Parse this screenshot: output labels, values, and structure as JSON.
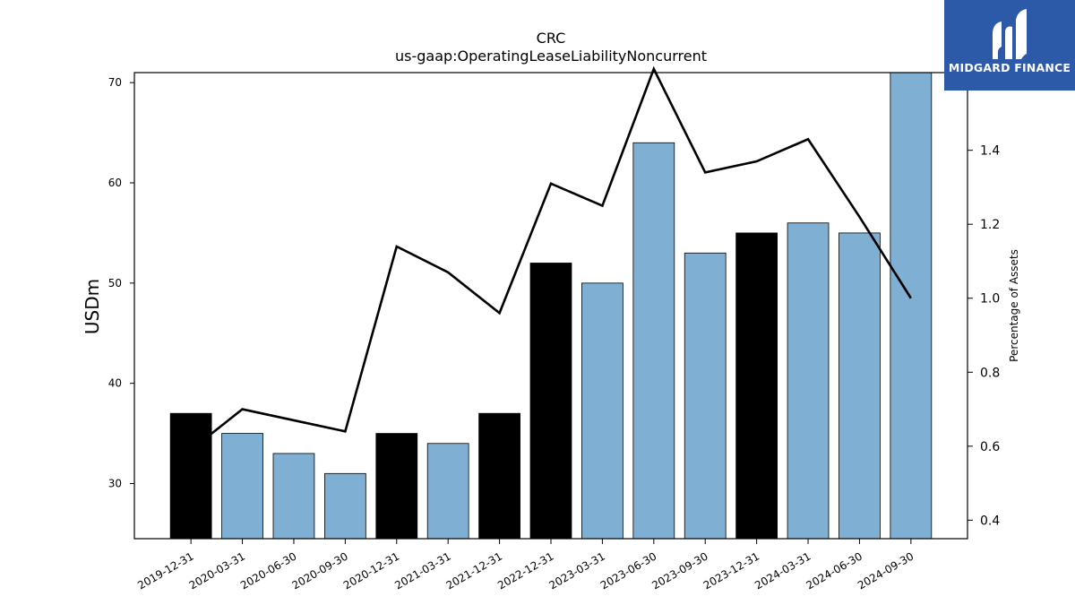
{
  "title": "CRC",
  "subtitle": "us-gaap:OperatingLeaseLiabilityNoncurrent",
  "logo": {
    "text": "MIDGARD FINANCE",
    "color": "#2d5aa8"
  },
  "chart_data": {
    "type": "bar",
    "title": "CRC",
    "subtitle": "us-gaap:OperatingLeaseLiabilityNoncurrent",
    "categories": [
      "2019-12-31",
      "2020-03-31",
      "2020-06-30",
      "2020-09-30",
      "2020-12-31",
      "2021-03-31",
      "2021-12-31",
      "2022-12-31",
      "2023-03-31",
      "2023-06-30",
      "2023-09-30",
      "2023-12-31",
      "2024-03-31",
      "2024-06-30",
      "2024-09-30"
    ],
    "ylabel": "USDm",
    "y2label": "Percentage of Assets",
    "ylim": [
      24.5,
      71
    ],
    "y2lim": [
      0.35,
      1.61
    ],
    "yticks": [
      30,
      40,
      50,
      60,
      70
    ],
    "y2ticks": [
      0.4,
      0.6,
      0.8,
      1.0,
      1.2,
      1.4
    ],
    "series": [
      {
        "kind": "bar",
        "values": [
          37,
          35,
          33,
          31,
          35,
          34,
          37,
          52,
          50,
          64,
          53,
          55,
          56,
          55,
          71
        ],
        "colors": [
          "#000000",
          "#7fafd3",
          "#7fafd3",
          "#7fafd3",
          "#000000",
          "#7fafd3",
          "#000000",
          "#000000",
          "#7fafd3",
          "#7fafd3",
          "#7fafd3",
          "#000000",
          "#7fafd3",
          "#7fafd3",
          "#7fafd3"
        ]
      },
      {
        "kind": "line",
        "axis": "right",
        "color": "#000000",
        "values": [
          0.59,
          0.7,
          0.67,
          0.64,
          1.14,
          1.07,
          0.96,
          1.31,
          1.25,
          1.62,
          1.34,
          1.37,
          1.43,
          1.22,
          1.0
        ]
      }
    ],
    "grid": false
  }
}
